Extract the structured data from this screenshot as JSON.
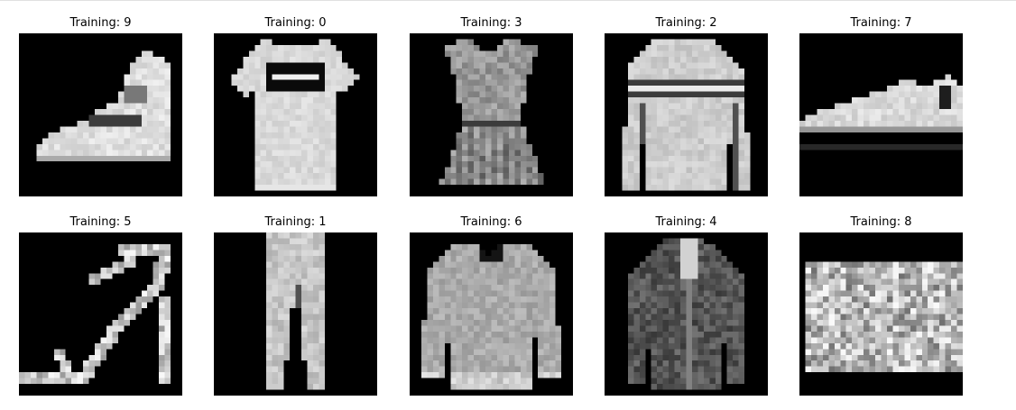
{
  "figure": {
    "panels": [
      {
        "title": "Training: 9",
        "item": "ankle-boot"
      },
      {
        "title": "Training: 0",
        "item": "t-shirt"
      },
      {
        "title": "Training: 3",
        "item": "dress"
      },
      {
        "title": "Training: 2",
        "item": "pullover"
      },
      {
        "title": "Training: 7",
        "item": "sneaker"
      },
      {
        "title": "Training: 5",
        "item": "sandal"
      },
      {
        "title": "Training: 1",
        "item": "trouser"
      },
      {
        "title": "Training: 6",
        "item": "shirt"
      },
      {
        "title": "Training: 4",
        "item": "coat"
      },
      {
        "title": "Training: 8",
        "item": "bag"
      }
    ]
  }
}
